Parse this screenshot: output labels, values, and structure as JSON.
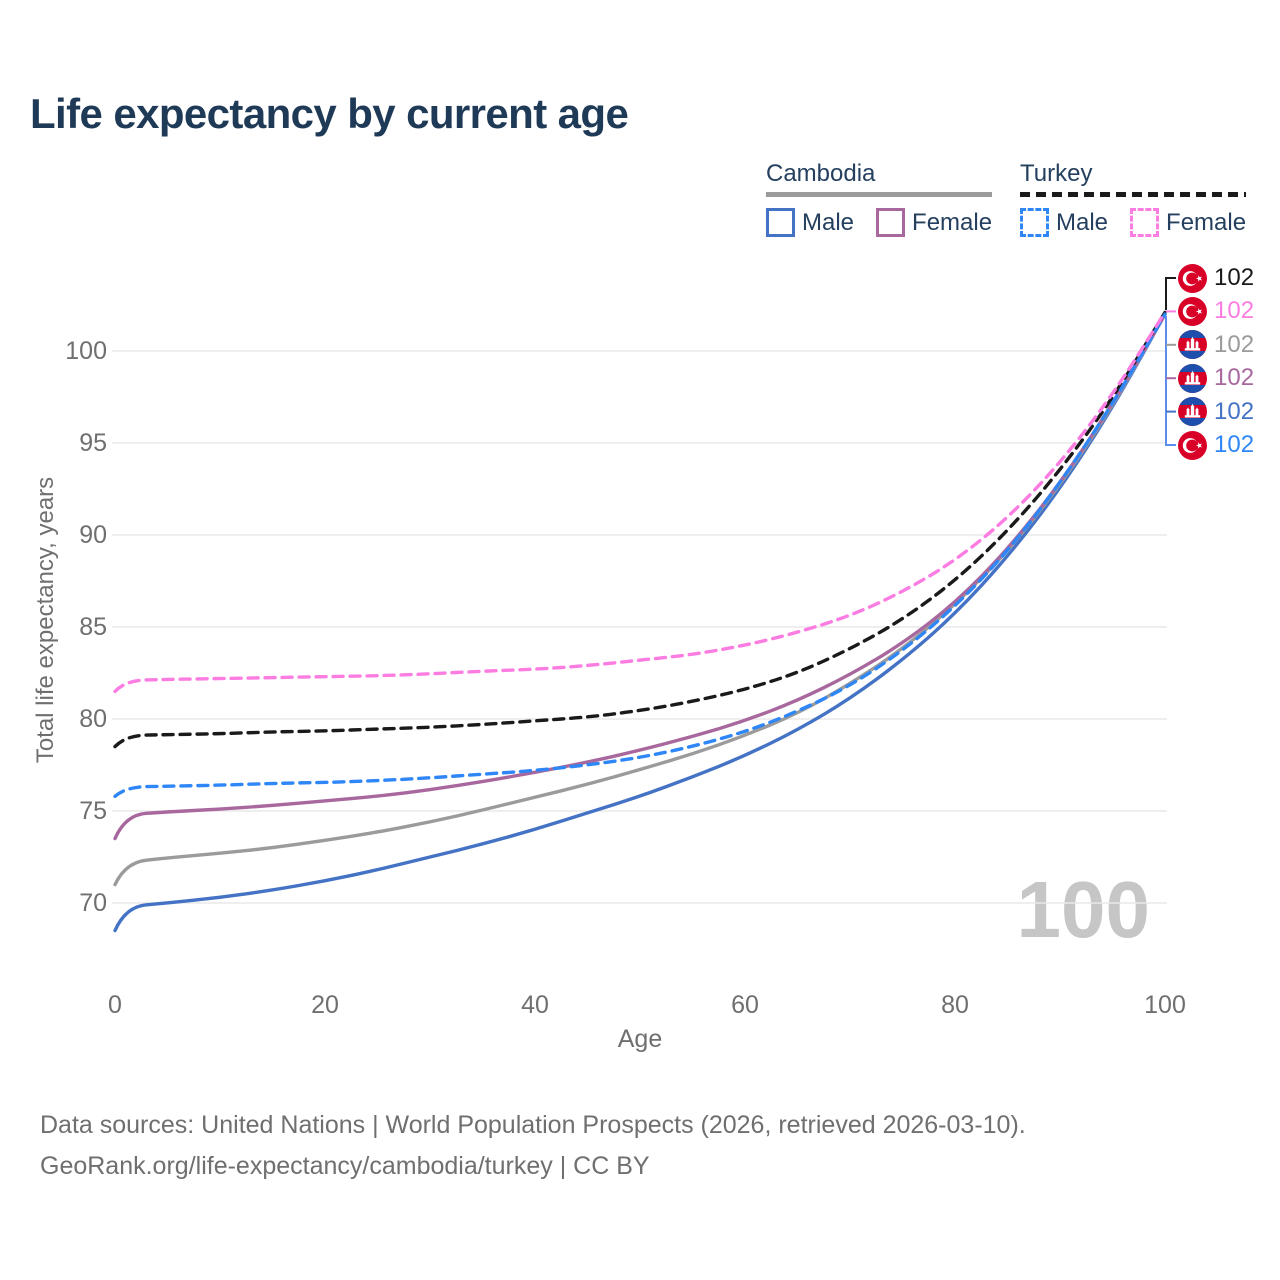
{
  "title": "Life expectancy by current age",
  "watermark_age": "100",
  "legend": {
    "groups": [
      {
        "name": "Cambodia",
        "line_style": "solid",
        "line_color": "#9b9b9b",
        "items": [
          {
            "label": "Male",
            "color": "#4472c4",
            "dashed": false
          },
          {
            "label": "Female",
            "color": "#a8689e",
            "dashed": false
          }
        ]
      },
      {
        "name": "Turkey",
        "line_style": "dashed",
        "line_color": "#1a1a1a",
        "items": [
          {
            "label": "Male",
            "color": "#2f86f6",
            "dashed": true
          },
          {
            "label": "Female",
            "color": "#fb7de2",
            "dashed": true
          }
        ]
      }
    ]
  },
  "axes": {
    "x": {
      "title": "Age",
      "ticks": [
        "0",
        "20",
        "40",
        "60",
        "80",
        "100"
      ]
    },
    "y": {
      "title": "Total life expectancy, years",
      "ticks": [
        "70",
        "75",
        "80",
        "85",
        "90",
        "95",
        "100"
      ]
    }
  },
  "end_labels": [
    {
      "flag": "turkey",
      "value": "102",
      "color": "#1a1a1a",
      "series": "Turkey"
    },
    {
      "flag": "turkey",
      "value": "102",
      "color": "#fb7de2",
      "series": "Turkey Female"
    },
    {
      "flag": "cambodia",
      "value": "102",
      "color": "#9b9b9b",
      "series": "Cambodia"
    },
    {
      "flag": "cambodia",
      "value": "102",
      "color": "#a8689e",
      "series": "Cambodia Female"
    },
    {
      "flag": "cambodia",
      "value": "102",
      "color": "#4472c4",
      "series": "Cambodia Male"
    },
    {
      "flag": "turkey",
      "value": "102",
      "color": "#2f86f6",
      "series": "Turkey Male"
    }
  ],
  "footer": {
    "line1": "Data sources: United Nations | World Population Prospects (2026, retrieved 2026-03-10).",
    "line2": "GeoRank.org/life-expectancy/cambodia/turkey | CC BY"
  },
  "colors": {
    "grid": "#e9e9e9",
    "tick_text": "#6f6f6f",
    "title_text": "#1f3a57",
    "legend_text": "#25405f",
    "watermark": "#c6c6c6",
    "leader_bracket_blue": "#5b8def",
    "turkey_flag_red": "#d80027",
    "cambodia_flag_blue": "#1f4fad"
  },
  "chart_data": {
    "type": "line",
    "title": "Life expectancy by current age",
    "xlabel": "Age",
    "ylabel": "Total life expectancy, years",
    "xlim": [
      0,
      100
    ],
    "ylim": [
      68,
      103
    ],
    "grid": "horizontal, y = 70..100 step 5",
    "legend_position": "top-right",
    "x": [
      0,
      1,
      5,
      10,
      15,
      20,
      25,
      30,
      35,
      40,
      45,
      50,
      55,
      60,
      65,
      70,
      75,
      80,
      85,
      90,
      95,
      100
    ],
    "series": [
      {
        "name": "Turkey Female",
        "country": "Turkey",
        "sex": "Female",
        "color": "#fb7de2",
        "dash": true,
        "values": [
          81.5,
          82.1,
          82.15,
          82.2,
          82.25,
          82.3,
          82.35,
          82.45,
          82.6,
          82.7,
          82.9,
          83.2,
          83.5,
          84.0,
          84.7,
          85.6,
          86.9,
          88.6,
          90.9,
          93.9,
          97.6,
          102.1
        ]
      },
      {
        "name": "Turkey",
        "country": "Turkey",
        "sex": "Both",
        "color": "#1a1a1a",
        "dash": true,
        "values": [
          78.5,
          79.1,
          79.15,
          79.2,
          79.3,
          79.35,
          79.45,
          79.55,
          79.7,
          79.9,
          80.1,
          80.45,
          80.95,
          81.6,
          82.5,
          83.8,
          85.4,
          87.5,
          90.2,
          93.5,
          97.4,
          102.1
        ]
      },
      {
        "name": "Turkey Male",
        "country": "Turkey",
        "sex": "Male",
        "color": "#2f86f6",
        "dash": true,
        "values": [
          75.8,
          76.3,
          76.35,
          76.4,
          76.5,
          76.55,
          76.65,
          76.8,
          77.0,
          77.2,
          77.5,
          77.9,
          78.5,
          79.3,
          80.4,
          81.8,
          83.7,
          86.1,
          89.1,
          92.8,
          97.1,
          102.0
        ]
      },
      {
        "name": "Cambodia Female",
        "country": "Cambodia",
        "sex": "Female",
        "color": "#a8689e",
        "dash": false,
        "values": [
          73.5,
          74.8,
          74.95,
          75.1,
          75.3,
          75.55,
          75.8,
          76.15,
          76.6,
          77.1,
          77.65,
          78.3,
          79.05,
          79.9,
          81.0,
          82.4,
          84.1,
          86.3,
          89.2,
          92.8,
          97.1,
          102.0
        ]
      },
      {
        "name": "Cambodia",
        "country": "Cambodia",
        "sex": "Both",
        "color": "#9b9b9b",
        "dash": false,
        "values": [
          71.0,
          72.2,
          72.45,
          72.7,
          73.0,
          73.4,
          73.85,
          74.4,
          75.05,
          75.75,
          76.45,
          77.25,
          78.1,
          79.1,
          80.3,
          81.9,
          83.8,
          86.2,
          89.1,
          92.7,
          97.0,
          102.0
        ]
      },
      {
        "name": "Cambodia Male",
        "country": "Cambodia",
        "sex": "Male",
        "color": "#4472c4",
        "dash": false,
        "values": [
          68.5,
          69.8,
          70.0,
          70.3,
          70.7,
          71.2,
          71.8,
          72.5,
          73.2,
          74.0,
          74.9,
          75.8,
          76.85,
          78.0,
          79.4,
          81.1,
          83.2,
          85.7,
          88.8,
          92.5,
          96.9,
          102.0
        ]
      }
    ],
    "end_value_labels": [
      102,
      102,
      102,
      102,
      102,
      102
    ]
  }
}
